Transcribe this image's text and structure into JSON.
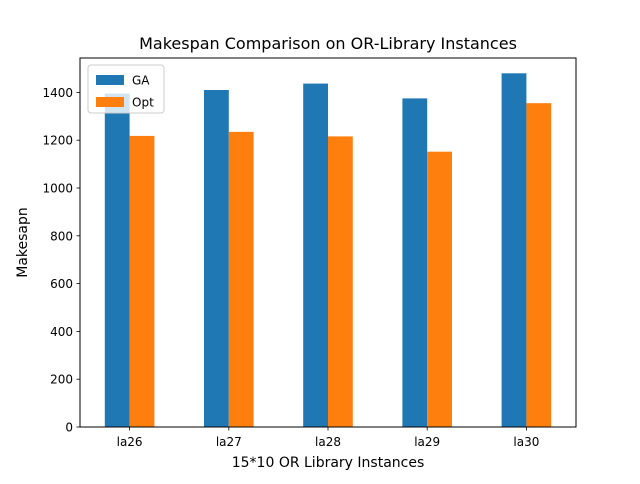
{
  "chart_data": {
    "type": "bar",
    "title": "Makespan Comparison on OR-Library Instances",
    "xlabel": "15*10 OR Library Instances",
    "ylabel": "Makesapn",
    "categories": [
      "la26",
      "la27",
      "la28",
      "la29",
      "la30"
    ],
    "series": [
      {
        "name": "GA",
        "color": "#1f77b4",
        "values": [
          1395,
          1410,
          1437,
          1375,
          1480
        ]
      },
      {
        "name": "Opt",
        "color": "#ff7f0e",
        "values": [
          1218,
          1235,
          1216,
          1152,
          1355
        ]
      }
    ],
    "ylim": [
      0,
      1544
    ],
    "yticks": [
      0,
      200,
      400,
      600,
      800,
      1000,
      1200,
      1400
    ],
    "grid": false,
    "legend_position": "top-left"
  }
}
